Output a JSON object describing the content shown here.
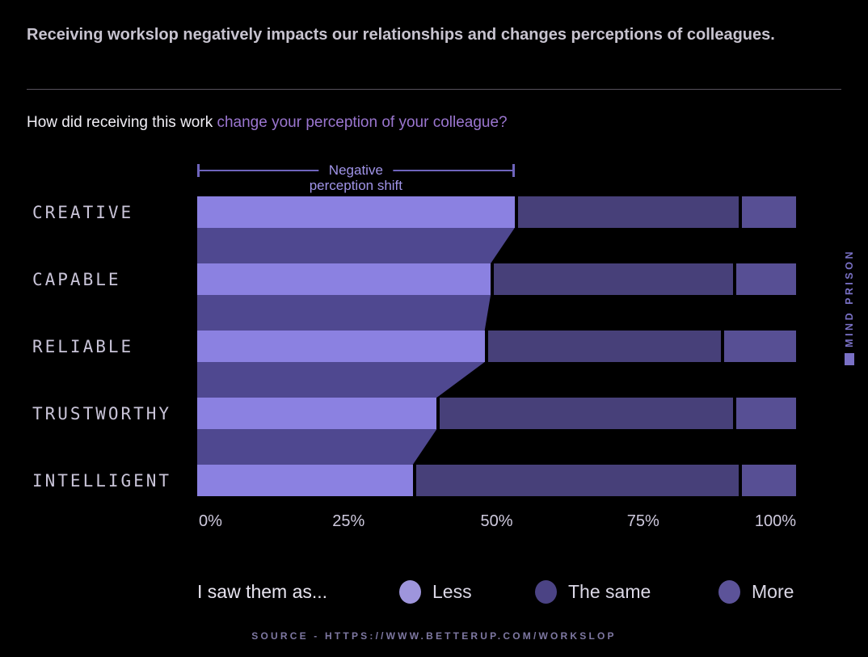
{
  "header": {
    "title": "Receiving workslop negatively impacts our relationships and changes perceptions of colleagues.",
    "question_prefix": "How did receiving this work ",
    "question_highlight": "change your perception of your colleague?"
  },
  "annotation": {
    "line1": "Negative",
    "line2": "perception shift"
  },
  "chart_data": {
    "type": "bar",
    "orientation": "horizontal",
    "stacked": true,
    "unit": "percent",
    "categories": [
      "CREATIVE",
      "CAPABLE",
      "RELIABLE",
      "TRUSTWORTHY",
      "INTELLIGENT"
    ],
    "series": [
      {
        "name": "Less",
        "color": "#8b81e1",
        "values": [
          53,
          49,
          48,
          40,
          36
        ]
      },
      {
        "name": "The same",
        "color": "#474079",
        "values": [
          38,
          41,
          40,
          50,
          55
        ]
      },
      {
        "name": "More",
        "color": "#574f94",
        "values": [
          9,
          10,
          12,
          10,
          9
        ]
      }
    ],
    "connector_color": "#4f4890",
    "x_ticks": [
      "0%",
      "25%",
      "50%",
      "75%",
      "100%"
    ],
    "xlim": [
      0,
      100
    ],
    "annotation_span": {
      "label": "Negative perception shift",
      "from_percent": 0,
      "to_percent": 53,
      "applies_to_series": "Less"
    }
  },
  "legend": {
    "prompt": "I saw them as...",
    "items": [
      {
        "label": "Less",
        "color": "#9e95dc"
      },
      {
        "label": "The same",
        "color": "#4b4384"
      },
      {
        "label": "More",
        "color": "#5c5399"
      }
    ]
  },
  "footer": {
    "source": "SOURCE - HTTPS://WWW.BETTERUP.COM/WORKSLOP"
  },
  "watermark": {
    "text": "MIND PRISON"
  }
}
